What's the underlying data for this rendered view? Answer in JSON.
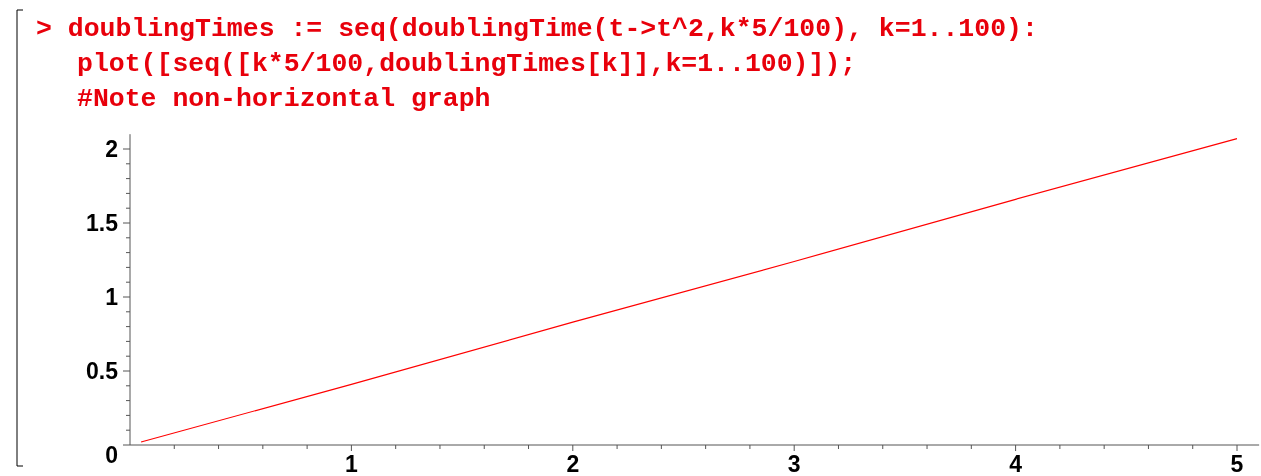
{
  "chart_data": {
    "type": "line",
    "annotations": [
      "> doublingTimes := seq(doublingTime(t->t^2,k*5/100), k=1..100):",
      "plot([seq([k*5/100,doublingTimes[k]],k=1..100)]);",
      "#Note non-horizontal graph"
    ],
    "series": [
      {
        "color": "#ff0000",
        "x": [
          0.05,
          1,
          2,
          3,
          4,
          5
        ],
        "values": [
          0.02,
          0.41,
          0.83,
          1.24,
          1.66,
          2.07
        ]
      }
    ],
    "xlim": [
      0,
      5.1
    ],
    "ylim": [
      0,
      2.1
    ],
    "xticks": [
      {
        "value": 0.2,
        "label": null
      },
      {
        "value": 0.4,
        "label": null
      },
      {
        "value": 0.6,
        "label": null
      },
      {
        "value": 0.8,
        "label": null
      },
      1,
      {
        "value": 1.2,
        "label": null
      },
      {
        "value": 1.4,
        "label": null
      },
      {
        "value": 1.6,
        "label": null
      },
      {
        "value": 1.8,
        "label": null
      },
      2,
      {
        "value": 2.2,
        "label": null
      },
      {
        "value": 2.4,
        "label": null
      },
      {
        "value": 2.6,
        "label": null
      },
      {
        "value": 2.8,
        "label": null
      },
      3,
      {
        "value": 3.2,
        "label": null
      },
      {
        "value": 3.4,
        "label": null
      },
      {
        "value": 3.6,
        "label": null
      },
      {
        "value": 3.8,
        "label": null
      },
      4,
      {
        "value": 4.2,
        "label": null
      },
      {
        "value": 4.4,
        "label": null
      },
      {
        "value": 4.6,
        "label": null
      },
      {
        "value": 4.8,
        "label": null
      },
      5
    ],
    "yticks": [
      0,
      {
        "value": 0.1,
        "label": null
      },
      {
        "value": 0.2,
        "label": null
      },
      {
        "value": 0.3,
        "label": null
      },
      {
        "value": 0.4,
        "label": null
      },
      0.5,
      {
        "value": 0.6,
        "label": null
      },
      {
        "value": 0.7,
        "label": null
      },
      {
        "value": 0.8,
        "label": null
      },
      {
        "value": 0.9,
        "label": null
      },
      1,
      {
        "value": 1.1,
        "label": null
      },
      {
        "value": 1.2,
        "label": null
      },
      {
        "value": 1.3,
        "label": null
      },
      {
        "value": 1.4,
        "label": null
      },
      1.5,
      {
        "value": 1.6,
        "label": null
      },
      {
        "value": 1.7,
        "label": null
      },
      {
        "value": 1.8,
        "label": null
      },
      {
        "value": 1.9,
        "label": null
      },
      2
    ],
    "grid": false,
    "marker": "none",
    "line_style": "solid"
  }
}
